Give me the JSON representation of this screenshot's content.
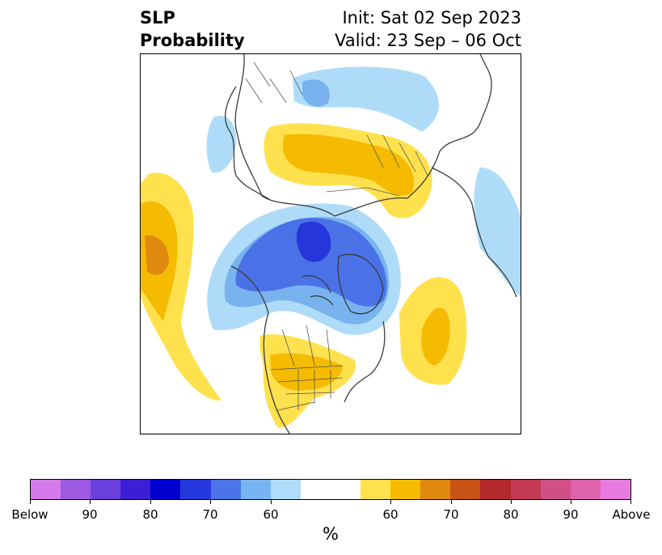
{
  "header": {
    "title_line1": "SLP",
    "title_line2": "Probability",
    "init_text": "Init: Sat 02 Sep 2023",
    "valid_text": "Valid: 23 Sep – 06 Oct"
  },
  "map": {
    "projection": "north-polar-stereographic",
    "region": "Northern Hemisphere",
    "colors": {
      "below_60": "#aedcf8",
      "below_70": "#78b3f0",
      "below_80": "#4a72e6",
      "below_90": "#2537db",
      "above_60": "#ffe14e",
      "above_70": "#f5bb00",
      "above_80": "#e0890f",
      "coast": "#3a3a3a",
      "borders": "#555555"
    }
  },
  "colorbar": {
    "unit": "%",
    "segments": [
      "#d47aeb",
      "#9e59e3",
      "#6b3fdc",
      "#3a1fd5",
      "#0000cf",
      "#2538de",
      "#4a74e7",
      "#78b3f2",
      "#aedcfa",
      "#ffffff",
      "#ffffff",
      "#ffe14e",
      "#f5bb00",
      "#e0890f",
      "#c85415",
      "#b3282a",
      "#c43a52",
      "#d04f86",
      "#de63ad",
      "#e87be0"
    ],
    "labels": [
      "Below",
      "90",
      "80",
      "70",
      "60",
      "60",
      "70",
      "80",
      "90",
      "Above"
    ]
  }
}
